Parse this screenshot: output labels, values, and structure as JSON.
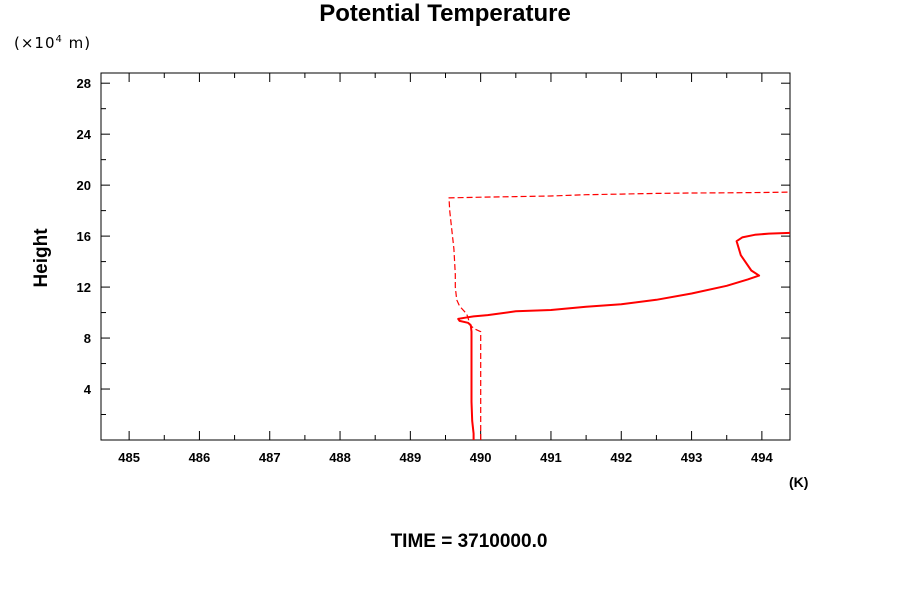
{
  "header": {
    "title": "Potential Temperature"
  },
  "footer": {
    "time_label": "TIME = 3710000.0"
  },
  "chart_data": {
    "type": "line",
    "title": "Potential Temperature",
    "xlabel": "",
    "ylabel": "Height",
    "x_unit": "(K)",
    "y_unit": "(×10⁴ m)",
    "y_unit_parts": {
      "open": "(×10",
      "exp": "4",
      "close": " m)"
    },
    "xlim": [
      484.6,
      494.4
    ],
    "ylim": [
      0,
      28.8
    ],
    "x_ticks": [
      485,
      486,
      487,
      488,
      489,
      490,
      491,
      492,
      493,
      494
    ],
    "y_ticks": [
      4,
      8,
      12,
      16,
      20,
      24,
      28
    ],
    "grid": false,
    "colors": {
      "series": "#ff0000",
      "axis": "#000000"
    },
    "series": [
      {
        "style": "solid",
        "points": [
          [
            489.9,
            0.0
          ],
          [
            489.9,
            0.5
          ],
          [
            489.88,
            1.5
          ],
          [
            489.87,
            3.0
          ],
          [
            489.87,
            5.0
          ],
          [
            489.87,
            7.0
          ],
          [
            489.87,
            8.5
          ],
          [
            489.86,
            9.0
          ],
          [
            489.82,
            9.2
          ],
          [
            489.7,
            9.35
          ],
          [
            489.68,
            9.5
          ],
          [
            489.78,
            9.6
          ],
          [
            489.9,
            9.7
          ],
          [
            490.1,
            9.8
          ],
          [
            490.5,
            10.1
          ],
          [
            491.0,
            10.2
          ],
          [
            491.5,
            10.45
          ],
          [
            492.0,
            10.65
          ],
          [
            492.5,
            11.0
          ],
          [
            493.0,
            11.5
          ],
          [
            493.5,
            12.1
          ],
          [
            493.8,
            12.6
          ],
          [
            493.96,
            12.9
          ],
          [
            493.85,
            13.3
          ],
          [
            493.7,
            14.5
          ],
          [
            493.64,
            15.6
          ],
          [
            493.72,
            15.9
          ],
          [
            493.9,
            16.1
          ],
          [
            494.1,
            16.2
          ],
          [
            494.4,
            16.25
          ]
        ]
      },
      {
        "style": "dashed",
        "points": [
          [
            490.0,
            0.0
          ],
          [
            490.0,
            4.0
          ],
          [
            490.0,
            8.5
          ],
          [
            489.92,
            8.7
          ],
          [
            489.85,
            9.0
          ],
          [
            489.82,
            9.6
          ],
          [
            489.8,
            9.9
          ],
          [
            489.7,
            10.5
          ],
          [
            489.66,
            11.0
          ],
          [
            489.64,
            12.0
          ],
          [
            489.64,
            13.0
          ],
          [
            489.63,
            14.0
          ],
          [
            489.62,
            15.0
          ],
          [
            489.6,
            16.0
          ],
          [
            489.58,
            17.0
          ],
          [
            489.56,
            18.0
          ],
          [
            489.55,
            19.0
          ],
          [
            490.0,
            19.05
          ],
          [
            490.5,
            19.1
          ],
          [
            491.0,
            19.15
          ],
          [
            491.5,
            19.25
          ],
          [
            492.0,
            19.3
          ],
          [
            492.5,
            19.35
          ],
          [
            493.0,
            19.38
          ],
          [
            493.5,
            19.4
          ],
          [
            494.0,
            19.42
          ],
          [
            494.4,
            19.45
          ]
        ]
      }
    ]
  }
}
